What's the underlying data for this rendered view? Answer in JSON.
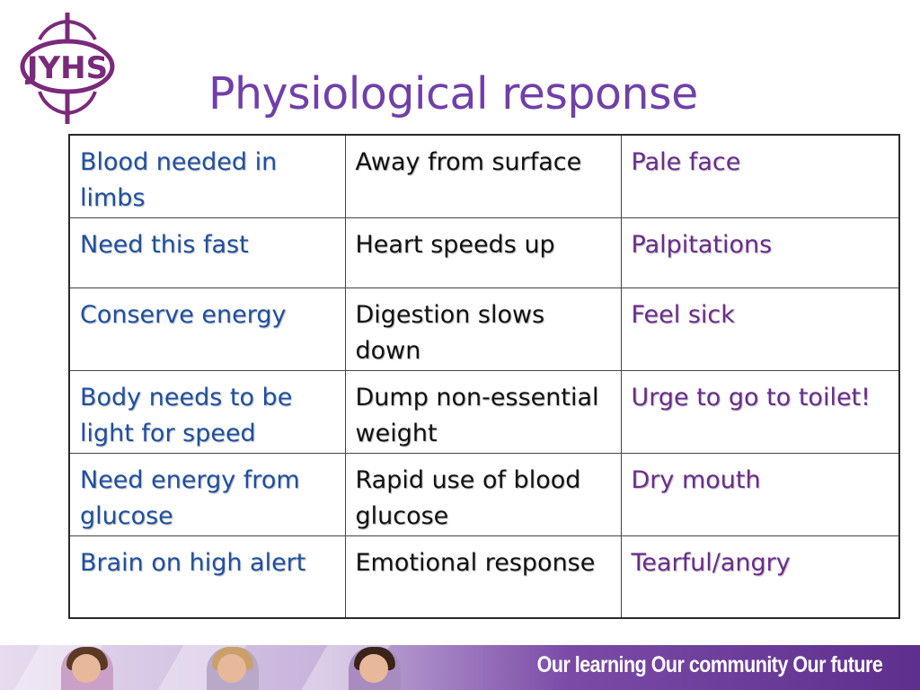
{
  "logo": {
    "text": "JYHS",
    "color": "#7a2a7a"
  },
  "title": "Physiological response",
  "table": {
    "rows": [
      [
        "Blood needed in limbs",
        "Away from surface",
        "Pale face"
      ],
      [
        "Need this fast",
        "Heart speeds up",
        "Palpitations"
      ],
      [
        "Conserve energy",
        "Digestion slows down",
        "Feel sick"
      ],
      [
        "Body needs to be light for speed",
        "Dump non-essential weight",
        "Urge to go to toilet!"
      ],
      [
        "Need energy from glucose",
        "Rapid use of blood glucose",
        "Dry mouth"
      ],
      [
        "Brain on high alert",
        "Emotional response",
        "Tearful/angry"
      ]
    ]
  },
  "footer": {
    "tagline": "Our learning  Our community  Our future"
  },
  "colors": {
    "title": "#7040a8",
    "cause": "#1f4fa0",
    "response": "#111111",
    "symptom": "#6a2c8c",
    "footer": "#6a3a9a"
  }
}
